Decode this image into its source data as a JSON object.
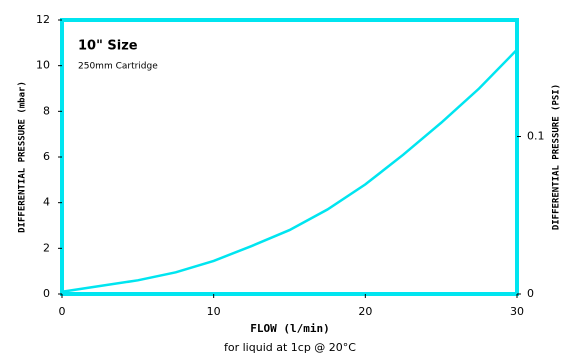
{
  "chart_data": {
    "type": "line",
    "annotations": [
      "10\" Size",
      "250mm Cartridge"
    ],
    "x_label": "FLOW (l/min)",
    "x_sublabel": "for liquid at 1cp @ 20°C",
    "y_label": "DIFFERENTIAL PRESSURE (mbar)",
    "y2_label": "DIFFERENTIAL PRESSURE (PSI)",
    "x": [
      0,
      2.5,
      5,
      7.5,
      10,
      12.5,
      15,
      17.5,
      20,
      22.5,
      25,
      27.5,
      30
    ],
    "series": [
      {
        "color": "#00e5f0",
        "values": [
          0.1,
          0.35,
          0.6,
          0.95,
          1.45,
          2.1,
          2.8,
          3.7,
          4.8,
          6.1,
          7.5,
          9.0,
          10.7
        ]
      }
    ],
    "xlim": [
      0,
      30
    ],
    "xticks": [
      0,
      10,
      20,
      30
    ],
    "ylim": [
      0,
      12
    ],
    "yticks": [
      0,
      2,
      4,
      6,
      8,
      10,
      12
    ],
    "y2lim": [
      0,
      0.174
    ],
    "y2ticks": [
      0,
      0.1
    ],
    "frame_color": "#00e5f0"
  }
}
